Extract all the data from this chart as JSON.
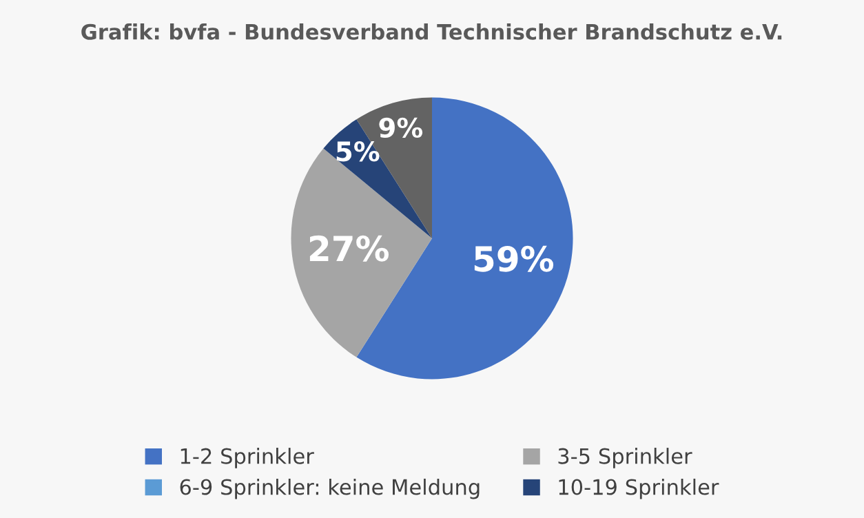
{
  "chart_data": {
    "type": "pie",
    "subtitle": "Grafik: bvfa - Bundesverband Technischer Brandschutz e.V.",
    "categories": [
      "1-2 Sprinkler",
      "3-5 Sprinkler",
      "6-9 Sprinkler: keine Meldung",
      "10-19 Sprinkler",
      null
    ],
    "values": [
      59,
      27,
      0,
      5,
      9
    ],
    "colors": [
      "#4472c4",
      "#a5a5a5",
      "#5b9bd5",
      "#264478",
      "#636363"
    ],
    "value_labels": [
      "59%",
      "27%",
      null,
      "5%",
      "9%"
    ],
    "legend": "bottom"
  }
}
